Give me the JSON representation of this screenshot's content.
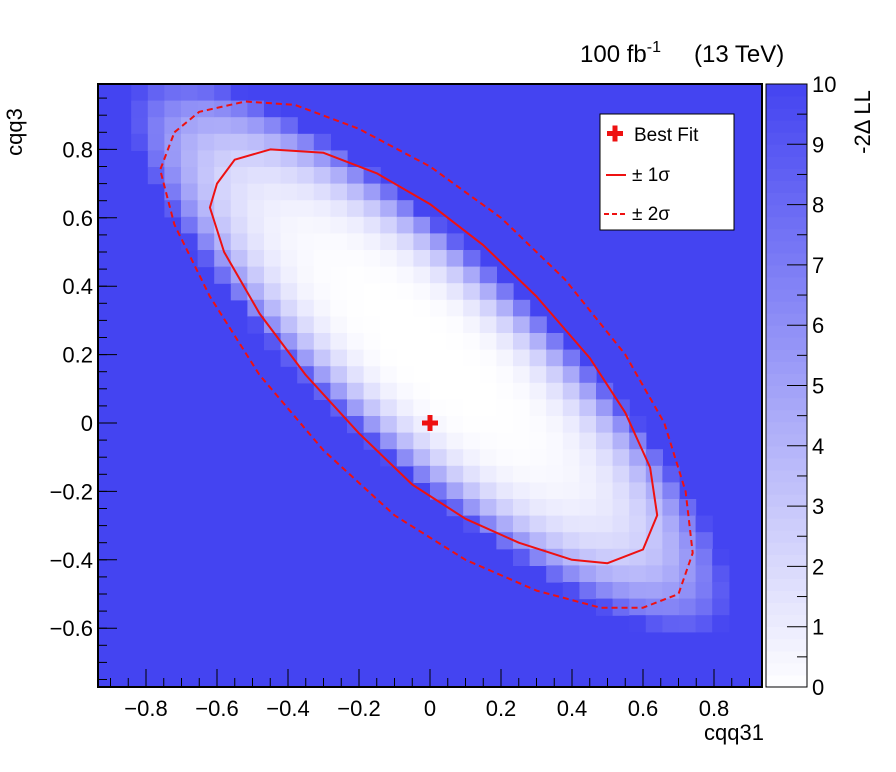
{
  "header": {
    "lumi": "100 fb",
    "lumi_exp": "-1",
    "energy": "(13 TeV)"
  },
  "chart_data": {
    "type": "heatmap",
    "title": "",
    "xlabel": "cqq31",
    "ylabel": "cqq3",
    "zlabel": "-2Δ LL",
    "xlim": [
      -0.94,
      0.94
    ],
    "ylim": [
      -0.77,
      0.98
    ],
    "zlim": [
      0,
      10
    ],
    "xticks": [
      -0.8,
      -0.6,
      -0.4,
      -0.2,
      0,
      0.2,
      0.4,
      0.6,
      0.8
    ],
    "yticks": [
      -0.6,
      -0.4,
      -0.2,
      0,
      0.2,
      0.4,
      0.6,
      0.8
    ],
    "zticks": [
      0,
      1,
      2,
      3,
      4,
      5,
      6,
      7,
      8,
      9,
      10
    ],
    "xtick_labels": [
      "−0.8",
      "−0.6",
      "−0.4",
      "−0.2",
      "0",
      "0.2",
      "0.4",
      "0.6",
      "0.8"
    ],
    "ytick_labels": [
      "−0.6",
      "−0.4",
      "−0.2",
      "0",
      "0.2",
      "0.4",
      "0.6",
      "0.8"
    ],
    "best_fit": {
      "x": 0.0,
      "y": 0.0
    },
    "contour_1sigma": {
      "center": [
        -0.0,
        0.03
      ],
      "polyline": [
        [
          -0.6,
          0.7
        ],
        [
          -0.55,
          0.77
        ],
        [
          -0.45,
          0.8
        ],
        [
          -0.3,
          0.79
        ],
        [
          -0.15,
          0.73
        ],
        [
          0.0,
          0.64
        ],
        [
          0.15,
          0.52
        ],
        [
          0.3,
          0.37
        ],
        [
          0.45,
          0.19
        ],
        [
          0.55,
          0.03
        ],
        [
          0.62,
          -0.13
        ],
        [
          0.64,
          -0.27
        ],
        [
          0.6,
          -0.37
        ],
        [
          0.5,
          -0.41
        ],
        [
          0.4,
          -0.4
        ],
        [
          0.25,
          -0.35
        ],
        [
          0.1,
          -0.28
        ],
        [
          -0.05,
          -0.18
        ],
        [
          -0.2,
          -0.03
        ],
        [
          -0.35,
          0.14
        ],
        [
          -0.48,
          0.32
        ],
        [
          -0.58,
          0.5
        ],
        [
          -0.62,
          0.63
        ],
        [
          -0.6,
          0.7
        ]
      ]
    },
    "contour_2sigma": {
      "polyline": [
        [
          -0.72,
          0.85
        ],
        [
          -0.65,
          0.91
        ],
        [
          -0.52,
          0.94
        ],
        [
          -0.38,
          0.93
        ],
        [
          -0.2,
          0.86
        ],
        [
          0.0,
          0.75
        ],
        [
          0.2,
          0.6
        ],
        [
          0.38,
          0.42
        ],
        [
          0.55,
          0.2
        ],
        [
          0.66,
          0.0
        ],
        [
          0.72,
          -0.2
        ],
        [
          0.74,
          -0.38
        ],
        [
          0.7,
          -0.5
        ],
        [
          0.6,
          -0.54
        ],
        [
          0.48,
          -0.54
        ],
        [
          0.3,
          -0.49
        ],
        [
          0.1,
          -0.4
        ],
        [
          -0.1,
          -0.27
        ],
        [
          -0.3,
          -0.08
        ],
        [
          -0.48,
          0.14
        ],
        [
          -0.62,
          0.37
        ],
        [
          -0.72,
          0.58
        ],
        [
          -0.76,
          0.74
        ],
        [
          -0.72,
          0.85
        ]
      ]
    },
    "legend": {
      "placement": "top-right",
      "entries": [
        {
          "label": "Best Fit",
          "style": "marker"
        },
        {
          "label": "± 1σ",
          "style": "solid"
        },
        {
          "label": "± 2σ",
          "style": "dashed"
        }
      ]
    },
    "colors": {
      "max": "#4444f1",
      "min": "#ffffff",
      "contour": "#ee1111"
    }
  }
}
